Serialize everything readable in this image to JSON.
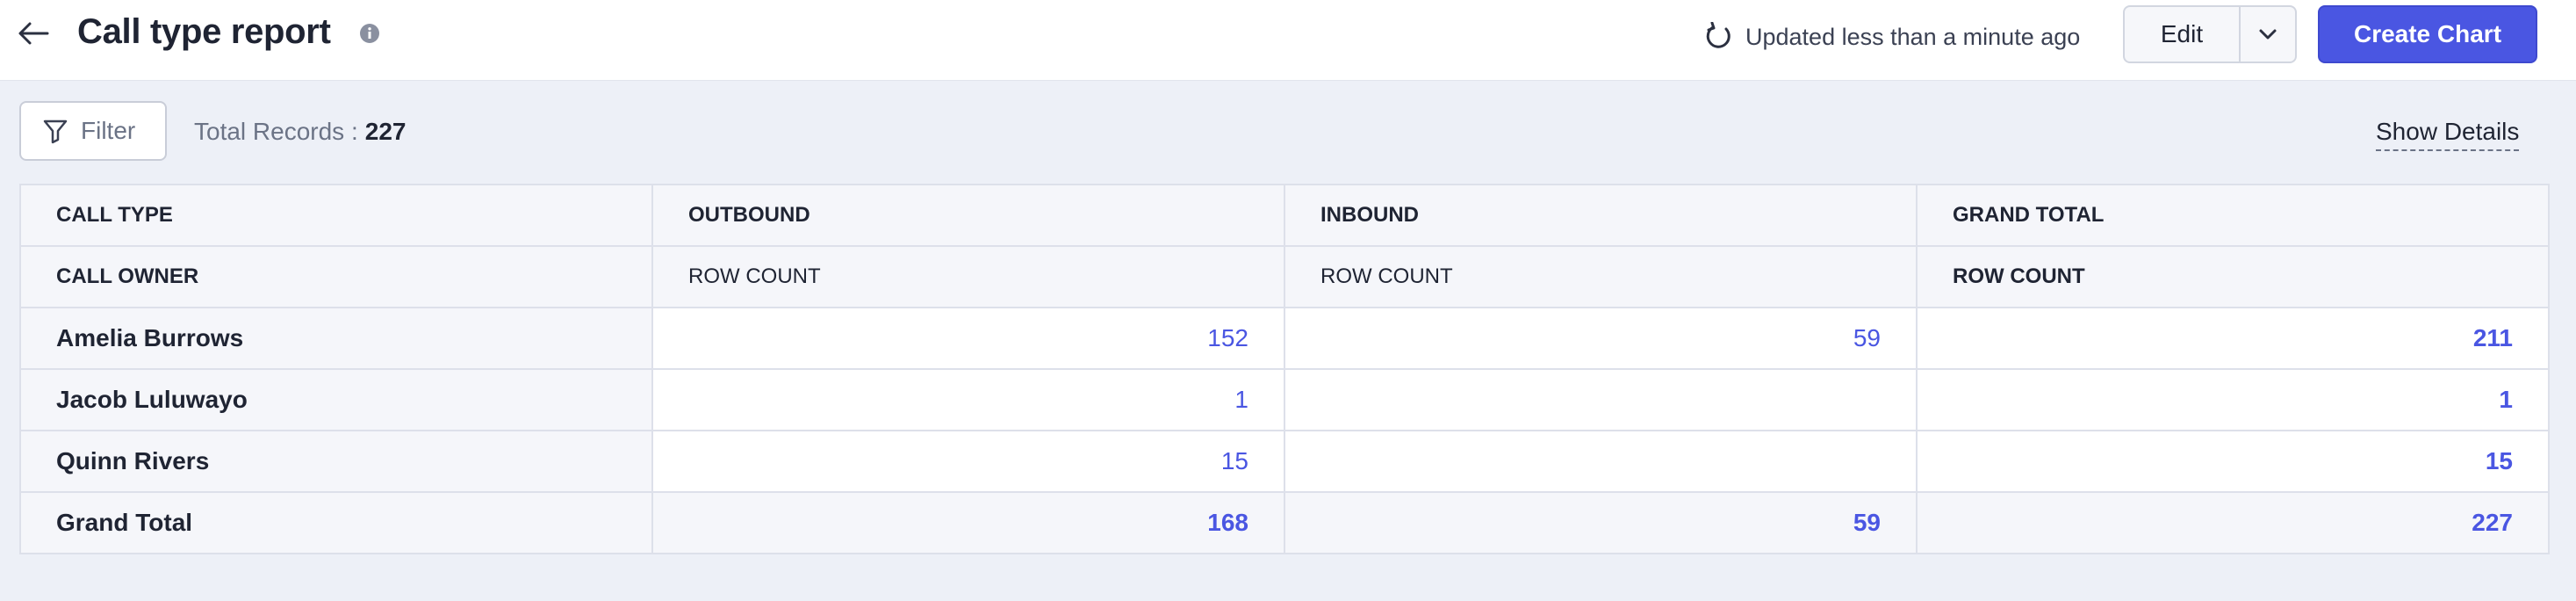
{
  "header": {
    "title": "Call type report",
    "updated_text": "Updated less than a minute ago",
    "edit_label": "Edit",
    "create_chart_label": "Create Chart"
  },
  "toolbar": {
    "filter_label": "Filter",
    "total_records_label": "Total Records :",
    "total_records_value": "227",
    "show_details_label": "Show Details"
  },
  "table": {
    "header_row1": [
      "CALL TYPE",
      "OUTBOUND",
      "INBOUND",
      "GRAND TOTAL"
    ],
    "header_row2": [
      "CALL OWNER",
      "ROW COUNT",
      "ROW COUNT",
      "ROW COUNT"
    ],
    "rows": [
      {
        "owner": "Amelia Burrows",
        "outbound": "152",
        "inbound": "59",
        "total": "211"
      },
      {
        "owner": "Jacob Luluwayo",
        "outbound": "1",
        "inbound": "",
        "total": "1"
      },
      {
        "owner": "Quinn Rivers",
        "outbound": "15",
        "inbound": "",
        "total": "15"
      }
    ],
    "grand_total": {
      "label": "Grand Total",
      "outbound": "168",
      "inbound": "59",
      "total": "227"
    }
  },
  "colors": {
    "accent": "#4a56e2",
    "background": "#edf0f7",
    "header_bg": "#ffffff"
  },
  "icons": {
    "back": "arrow-left-icon",
    "info": "info-icon",
    "refresh": "refresh-icon",
    "caret": "chevron-down-icon",
    "filter": "filter-icon"
  }
}
